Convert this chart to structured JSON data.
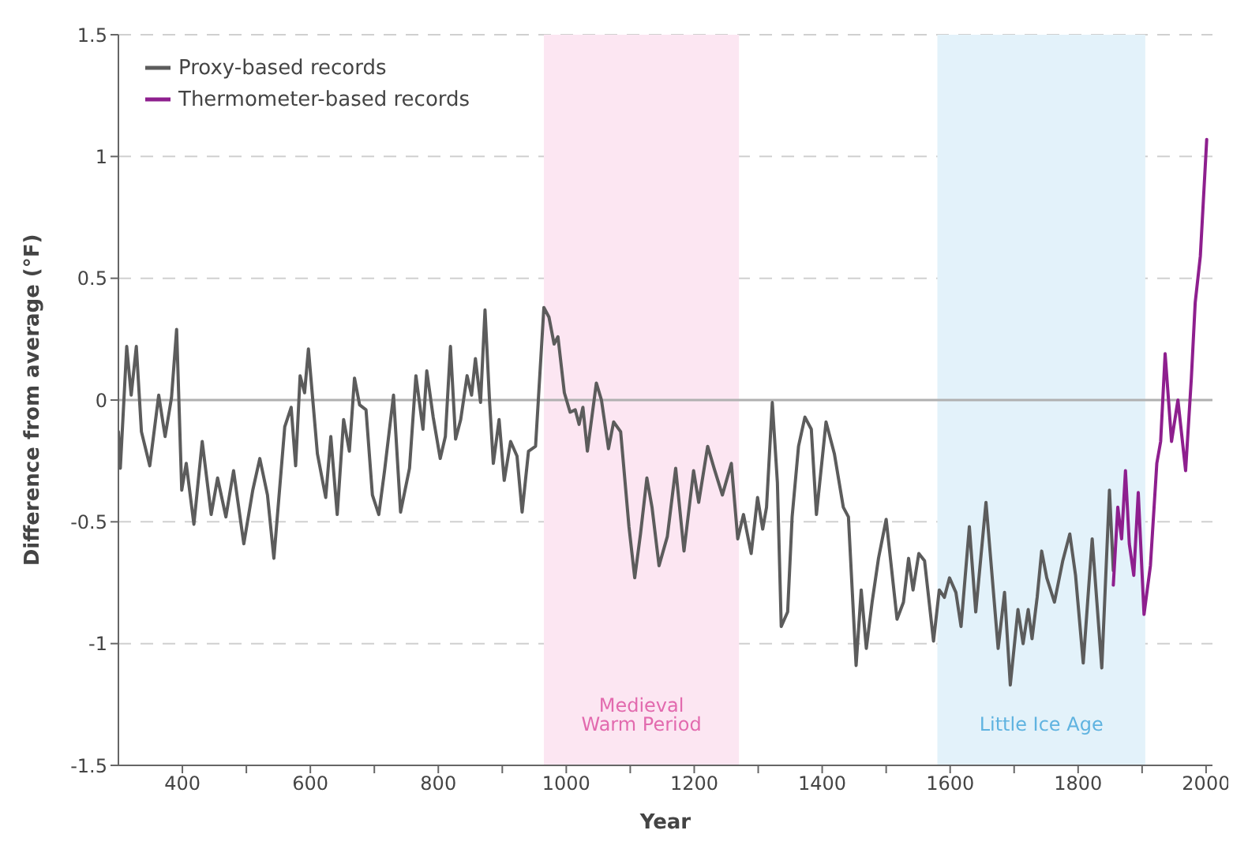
{
  "chart_data": {
    "type": "line",
    "xlabel": "Year",
    "ylabel": "Difference from average (°F)",
    "xlim": [
      300,
      2010
    ],
    "xticks": [
      400,
      {
        "value": 500,
        "label": null
      },
      600,
      {
        "value": 700,
        "label": null
      },
      800,
      {
        "value": 900,
        "label": null
      },
      1000,
      {
        "value": 1100,
        "label": null
      },
      1200,
      {
        "value": 1300,
        "label": null
      },
      1400,
      {
        "value": 1500,
        "label": null
      },
      1600,
      {
        "value": 1700,
        "label": null
      },
      1800,
      {
        "value": 1900,
        "label": null
      },
      2000
    ],
    "ylim": [
      -1.5,
      1.5
    ],
    "yticks": [
      -1.5,
      -1,
      -0.5,
      0,
      0.5,
      1,
      1.5
    ],
    "grid": "y",
    "legend": "top left",
    "marker": "none",
    "line_style": "solid",
    "bands": [
      {
        "axis": "x",
        "from": 965,
        "to": 1270,
        "label": "Medieval Warm Period",
        "color": "#fce6f2"
      },
      {
        "axis": "x",
        "from": 1580,
        "to": 1905,
        "label": "Little Ice Age",
        "color": "#e3f2fa"
      }
    ],
    "ref_lines": [
      {
        "axis": "y",
        "value": 0,
        "color": "#b0b0b0"
      }
    ],
    "series": [
      {
        "name": "Proxy-based records",
        "color": "#5c5c5c",
        "x": [
          300,
          303,
          313,
          320,
          328,
          336,
          349,
          363,
          373,
          383,
          391,
          399,
          406,
          418,
          431,
          445,
          455,
          468,
          480,
          496,
          510,
          521,
          533,
          543,
          560,
          570,
          577,
          584,
          591,
          597,
          611,
          624,
          632,
          642,
          652,
          661,
          669,
          677,
          687,
          697,
          707,
          716,
          730,
          741,
          755,
          765,
          776,
          782,
          792,
          803,
          811,
          819,
          827,
          835,
          845,
          852,
          858,
          866,
          873,
          880,
          886,
          895,
          903,
          913,
          923,
          931,
          941,
          952,
          965,
          973,
          981,
          987,
          997,
          1006,
          1014,
          1020,
          1026,
          1033,
          1047,
          1055,
          1066,
          1074,
          1085,
          1098,
          1107,
          1116,
          1126,
          1134,
          1145,
          1158,
          1171,
          1184,
          1199,
          1207,
          1221,
          1231,
          1244,
          1258,
          1268,
          1277,
          1289,
          1299,
          1307,
          1313,
          1322,
          1330,
          1336,
          1346,
          1353,
          1363,
          1373,
          1383,
          1391,
          1406,
          1419,
          1433,
          1441,
          1453,
          1461,
          1469,
          1478,
          1488,
          1500,
          1517,
          1527,
          1535,
          1542,
          1551,
          1560,
          1574,
          1583,
          1591,
          1599,
          1609,
          1617,
          1630,
          1640,
          1656,
          1675,
          1685,
          1694,
          1706,
          1714,
          1722,
          1728,
          1736,
          1743,
          1751,
          1763,
          1776,
          1787,
          1796,
          1808,
          1822,
          1837,
          1849,
          1855
        ],
        "values": [
          -0.13,
          -0.28,
          0.22,
          0.02,
          0.22,
          -0.13,
          -0.27,
          0.02,
          -0.15,
          0.01,
          0.29,
          -0.37,
          -0.26,
          -0.51,
          -0.17,
          -0.47,
          -0.32,
          -0.48,
          -0.29,
          -0.59,
          -0.37,
          -0.24,
          -0.39,
          -0.65,
          -0.11,
          -0.03,
          -0.27,
          0.1,
          0.03,
          0.21,
          -0.22,
          -0.4,
          -0.15,
          -0.47,
          -0.08,
          -0.21,
          0.09,
          -0.02,
          -0.04,
          -0.39,
          -0.47,
          -0.29,
          0.02,
          -0.46,
          -0.28,
          0.1,
          -0.12,
          0.12,
          -0.07,
          -0.24,
          -0.15,
          0.22,
          -0.16,
          -0.08,
          0.1,
          0.02,
          0.17,
          -0.01,
          0.37,
          0,
          -0.26,
          -0.08,
          -0.33,
          -0.17,
          -0.23,
          -0.46,
          -0.21,
          -0.19,
          0.38,
          0.34,
          0.23,
          0.26,
          0.03,
          -0.05,
          -0.04,
          -0.1,
          -0.03,
          -0.21,
          0.07,
          0,
          -0.2,
          -0.09,
          -0.13,
          -0.52,
          -0.73,
          -0.55,
          -0.32,
          -0.44,
          -0.68,
          -0.56,
          -0.28,
          -0.62,
          -0.29,
          -0.42,
          -0.19,
          -0.28,
          -0.39,
          -0.26,
          -0.57,
          -0.47,
          -0.63,
          -0.4,
          -0.53,
          -0.44,
          -0.01,
          -0.34,
          -0.93,
          -0.87,
          -0.48,
          -0.19,
          -0.07,
          -0.12,
          -0.47,
          -0.09,
          -0.22,
          -0.44,
          -0.48,
          -1.09,
          -0.78,
          -1.02,
          -0.83,
          -0.65,
          -0.49,
          -0.9,
          -0.83,
          -0.65,
          -0.78,
          -0.63,
          -0.66,
          -0.99,
          -0.78,
          -0.81,
          -0.73,
          -0.79,
          -0.93,
          -0.52,
          -0.87,
          -0.42,
          -1.02,
          -0.79,
          -1.17,
          -0.86,
          -1,
          -0.86,
          -0.98,
          -0.81,
          -0.62,
          -0.73,
          -0.83,
          -0.66,
          -0.55,
          -0.72,
          -1.08,
          -0.57,
          -1.1,
          -0.37,
          -0.7
        ]
      },
      {
        "name": "Thermometer-based records",
        "color": "#8e1f8e",
        "x": [
          1855,
          1862,
          1868,
          1874,
          1880,
          1887,
          1894,
          1903,
          1913,
          1923,
          1929,
          1936,
          1946,
          1956,
          1968,
          1977,
          1983,
          1991,
          2001
        ],
        "values": [
          -0.76,
          -0.44,
          -0.57,
          -0.29,
          -0.59,
          -0.72,
          -0.38,
          -0.88,
          -0.68,
          -0.26,
          -0.17,
          0.19,
          -0.17,
          0,
          -0.29,
          0.09,
          0.4,
          0.59,
          1.07
        ]
      }
    ]
  }
}
